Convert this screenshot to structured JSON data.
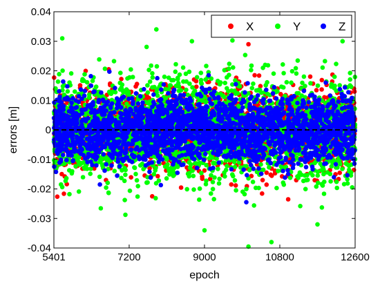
{
  "chart_data": {
    "type": "scatter",
    "title": "",
    "xlabel": "epoch",
    "ylabel": "errors [m]",
    "xlim": [
      5401,
      12600
    ],
    "ylim": [
      -0.04,
      0.04
    ],
    "x_ticks": [
      5401,
      7200,
      9000,
      10800,
      12600
    ],
    "x_tick_labels": [
      "5401",
      "7200",
      "9000",
      "10800",
      "12600"
    ],
    "y_ticks": [
      -0.04,
      -0.03,
      -0.02,
      -0.01,
      0,
      0.01,
      0.02,
      0.03,
      0.04
    ],
    "y_tick_labels": [
      "-0.04",
      "-0.03",
      "-0.02",
      "-0.01",
      "0",
      "0.01",
      "0.02",
      "0.03",
      "0.04"
    ],
    "grid": false,
    "legend_placement": "top-right",
    "zero_line": {
      "y": 0,
      "style": "dashed",
      "color": "#000000"
    },
    "series": [
      {
        "name": "X",
        "color": "#ff0000",
        "std": 0.0065,
        "outliers": [
          [
            10050,
            0.029
          ],
          [
            7750,
            -0.0225
          ],
          [
            11000,
            -0.0235
          ],
          [
            10200,
            0.0185
          ],
          [
            8800,
            0.0165
          ]
        ]
      },
      {
        "name": "Y",
        "color": "#00ff00",
        "std": 0.0085,
        "outliers": [
          [
            7850,
            0.034
          ],
          [
            5600,
            0.031
          ],
          [
            10050,
            -0.0395
          ],
          [
            10600,
            -0.038
          ],
          [
            9000,
            -0.034
          ],
          [
            8700,
            0.03
          ],
          [
            11700,
            -0.032
          ],
          [
            12300,
            0.03
          ]
        ]
      },
      {
        "name": "Z",
        "color": "#0000ff",
        "std": 0.0055,
        "outliers": [
          [
            10000,
            -0.0245
          ],
          [
            9100,
            0.0185
          ],
          [
            6500,
            -0.0185
          ],
          [
            11900,
            0.016
          ]
        ]
      }
    ]
  }
}
